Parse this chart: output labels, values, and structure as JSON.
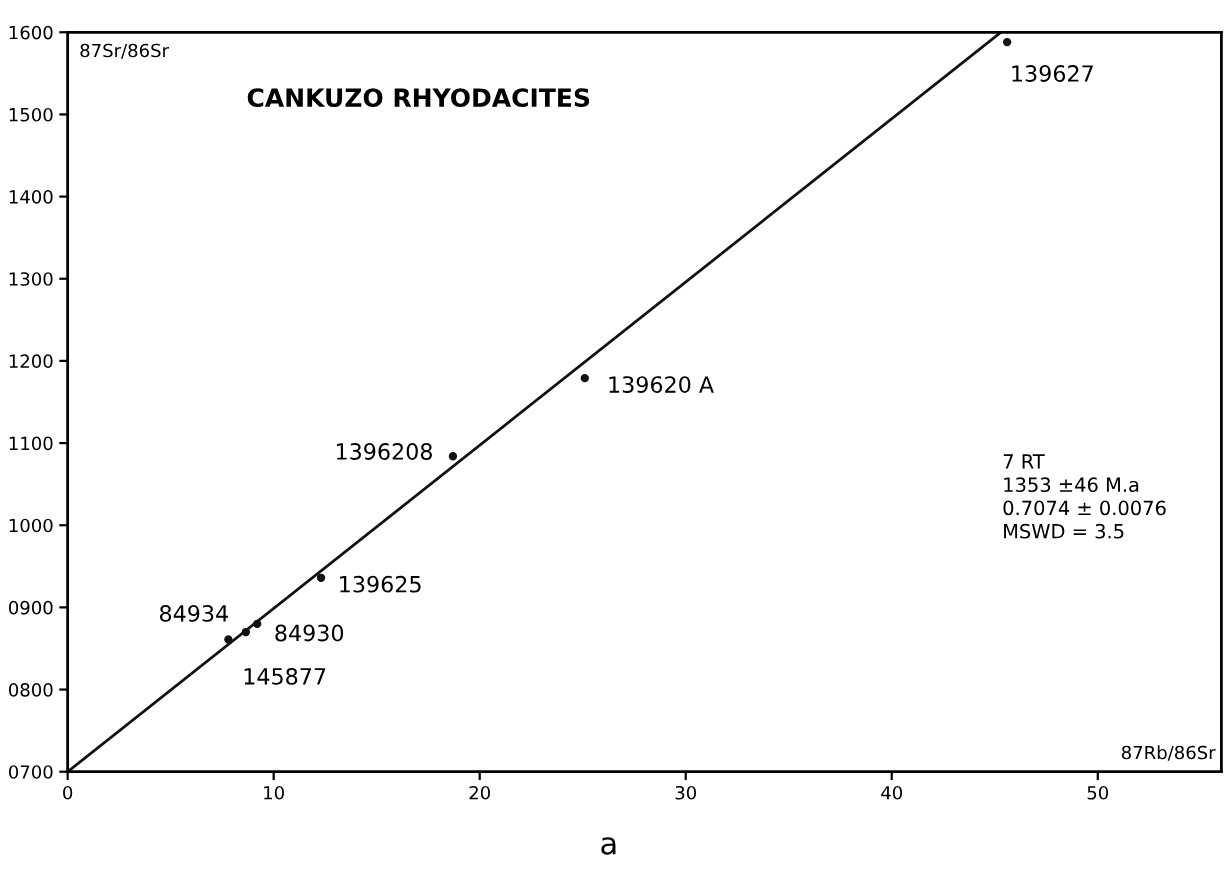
{
  "chart_data": {
    "type": "scatter",
    "title": "CANKUZO RHYODACITES",
    "xlabel": "87Rb/86Sr",
    "ylabel": "87Sr/86Sr",
    "xlim": [
      0,
      56
    ],
    "ylim": [
      700,
      1600
    ],
    "xticks": [
      0,
      10,
      20,
      30,
      40,
      50
    ],
    "yticks": [
      {
        "value": 700,
        "label": "0700"
      },
      {
        "value": 800,
        "label": "0800"
      },
      {
        "value": 900,
        "label": "0900"
      },
      1000,
      1100,
      1200,
      1300,
      1400,
      1500,
      1600
    ],
    "grid": false,
    "legend": false,
    "marker": "circle",
    "series": [
      {
        "color": "#111111",
        "x": [
          7.8,
          8.65,
          9.2,
          12.3,
          18.7,
          25.1,
          45.6
        ],
        "values": [
          861,
          870,
          880,
          936,
          1084,
          1179,
          1588
        ]
      },
      {
        "type": "line",
        "color": "#111111",
        "x": [
          0,
          45.3
        ],
        "values": [
          700,
          1600
        ],
        "line_style": "solid",
        "marker": "none"
      }
    ],
    "annotations": [
      {
        "text": "145877",
        "x": 7.8,
        "y": 861
      },
      {
        "text": "84934",
        "x": 8.65,
        "y": 870
      },
      {
        "text": "84930",
        "x": 9.2,
        "y": 880
      },
      {
        "text": "139625",
        "x": 12.3,
        "y": 936
      },
      {
        "text": "1396208",
        "x": 18.7,
        "y": 1084
      },
      {
        "text": "139620 A",
        "x": 25.1,
        "y": 1179
      },
      {
        "text": "139627",
        "x": 45.6,
        "y": 1588
      },
      "7 RT\n1353 ±46 M.a\n0.7074 ± 0.0076\nMSWD = 3.5",
      "a"
    ]
  }
}
